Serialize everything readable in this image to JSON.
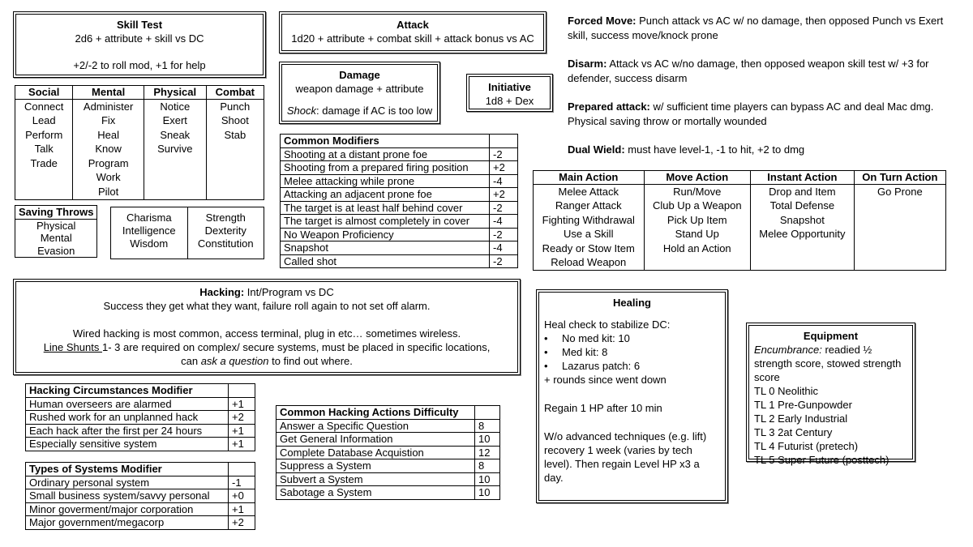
{
  "skill_test": {
    "title": "Skill Test",
    "formula": "2d6 + attribute + skill vs DC",
    "mods": "+2/-2 to roll mod, +1 for help"
  },
  "skills": {
    "headers": [
      "Social",
      "Mental",
      "Physical",
      "Combat"
    ],
    "columns": [
      [
        "Connect",
        "Lead",
        "Perform",
        "Talk",
        "Trade"
      ],
      [
        "Administer",
        "Fix",
        "Heal",
        "Know",
        "Program",
        "Work",
        "Pilot"
      ],
      [
        "Notice",
        "Exert",
        "Sneak",
        "Survive"
      ],
      [
        "Punch",
        "Shoot",
        "Stab"
      ]
    ]
  },
  "saving_throws": {
    "title": "Saving Throws",
    "items": [
      "Physical",
      "Mental",
      "Evasion"
    ]
  },
  "attributes": {
    "columns": [
      [
        "Charisma",
        "Intelligence",
        "Wisdom"
      ],
      [
        "Strength",
        "Dexterity",
        "Constitution"
      ]
    ]
  },
  "attack": {
    "title": "Attack",
    "formula": "1d20 + attribute + combat skill + attack bonus vs AC"
  },
  "damage": {
    "title": "Damage",
    "formula": "weapon damage + attribute",
    "shock_label": "Shock",
    "shock_text": ": damage if AC is too low"
  },
  "initiative": {
    "title": "Initiative",
    "formula": "1d8 + Dex"
  },
  "common_modifiers": {
    "title": "Common Modifiers",
    "rows": [
      [
        "Shooting at a distant prone foe",
        "-2"
      ],
      [
        "Shooting from a prepared firing position",
        "+2"
      ],
      [
        "Melee attacking while prone",
        "-4"
      ],
      [
        "Attacking an adjacent prone foe",
        "+2"
      ],
      [
        "The target is at least half behind cover",
        "-2"
      ],
      [
        "The target is almost completely in cover",
        "-4"
      ],
      [
        "No Weapon Proficiency",
        "-2"
      ],
      [
        "Snapshot",
        "-4"
      ],
      [
        "Called shot",
        "-2"
      ]
    ]
  },
  "notes": [
    {
      "label": "Forced Move:",
      "text": " Punch attack vs AC w/ no damage, then opposed Punch vs Exert skill, success move/knock prone"
    },
    {
      "label": "Disarm:",
      "text": " Attack vs AC w/no damage, then opposed weapon skill test w/ +3 for defender, success disarm"
    },
    {
      "label": "Prepared attack:",
      "text": " w/ sufficient time players can bypass AC and deal Mac dmg. Physical saving throw or mortally wounded"
    },
    {
      "label": "Dual Wield:",
      "text": " must have level-1, -1 to hit, +2 to dmg"
    }
  ],
  "actions": {
    "headers": [
      "Main Action",
      "Move Action",
      "Instant Action",
      "On Turn Action"
    ],
    "columns": [
      [
        "Melee Attack",
        "Ranger Attack",
        "Fighting Withdrawal",
        "Use a Skill",
        "Ready or Stow Item",
        "Reload Weapon"
      ],
      [
        "Run/Move",
        "Club Up a Weapon",
        "Pick Up Item",
        "Stand Up",
        "Hold an Action"
      ],
      [
        "Drop and Item",
        "Total Defense",
        "Snapshot",
        "Melee Opportunity"
      ],
      [
        "Go Prone"
      ]
    ]
  },
  "hacking": {
    "label": "Hacking:",
    "formula": " Int/Program vs DC",
    "line1": "Success they get what they want, failure roll again to not set off alarm.",
    "line2": "Wired hacking is most common, access terminal, plug in etc… sometimes wireless.",
    "shunts_label": "Line Shunts ",
    "line3": "1- 3 are required on complex/ secure systems, must be placed in specific locations,",
    "line4a": "can ",
    "line4b": "ask a question",
    "line4c": " to find out where."
  },
  "hacking_circumstances": {
    "title": "Hacking Circumstances Modifier",
    "rows": [
      [
        "Human overseers are alarmed",
        "+1"
      ],
      [
        "Rushed work for an unplanned hack",
        "+2"
      ],
      [
        "Each hack after the first per 24 hours",
        "+1"
      ],
      [
        "Especially sensitive system",
        "+1"
      ]
    ]
  },
  "system_types": {
    "title": "Types of Systems Modifier",
    "rows": [
      [
        "Ordinary personal system",
        "-1"
      ],
      [
        "Small business system/savvy personal",
        "+0"
      ],
      [
        "Minor goverment/major corporation",
        "+1"
      ],
      [
        "Major government/megacorp",
        "+2"
      ]
    ]
  },
  "hacking_actions": {
    "title": "Common Hacking Actions Difficulty",
    "rows": [
      [
        "Answer a Specific Question",
        "8"
      ],
      [
        "Get General Information",
        "10"
      ],
      [
        "Complete Database Acquistion",
        "12"
      ],
      [
        "Suppress a System",
        "8"
      ],
      [
        "Subvert a System",
        "10"
      ],
      [
        "Sabotage a System",
        "10"
      ]
    ]
  },
  "healing": {
    "title": "Healing",
    "intro": "Heal check to stabilize DC:",
    "bullets": [
      "No med kit: 10",
      "Med kit: 8",
      "Lazarus patch: 6"
    ],
    "rounds": "+ rounds since went down",
    "regain": "Regain 1 HP after 10 min",
    "recovery": "W/o advanced techniques (e.g. lift) recovery 1 week (varies by tech level). Then regain Level HP x3 a day."
  },
  "equipment": {
    "title": "Equipment",
    "enc_label": "Encumbrance:",
    "enc_text": " readied ½ strength score, stowed strength score",
    "levels": [
      "TL 0 Neolithic",
      "TL 1 Pre-Gunpowder",
      "TL 2 Early Industrial",
      "TL 3 2at Century",
      "TL 4 Futurist (pretech)",
      "TL 5 Super Future (posttech)"
    ]
  }
}
